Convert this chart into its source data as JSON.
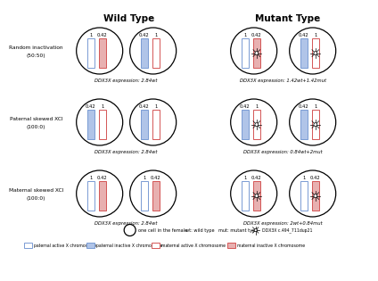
{
  "title_wt": "Wild Type",
  "title_mt": "Mutant Type",
  "row_labels": [
    "Random inactivation\n(50:50)",
    "Paternal skewed XCI\n(100:0)",
    "Maternal skewed XCI\n(100:0)"
  ],
  "wt_expressions": [
    "DDX3X expression: 2.84wt",
    "DDX3X expression: 2.84wt",
    "DDX3X expression: 2.84wt"
  ],
  "mt_expressions": [
    "DDX3X expression: 1.42wt+1.42mut",
    "DDX3X expression: 0.84wt+2mut",
    "DDX3X expression: 2wt+0.84mut"
  ],
  "blue_active": "#7a9bd4",
  "blue_inactive": "#b0c4e8",
  "red_active": "#d45555",
  "red_inactive": "#e8b0b0",
  "legend_circle_text": "one cell in the female",
  "legend_wt_text": "wt: wild type",
  "legend_mut_text": "mut: mutant type",
  "legend_ddx_text": "DDX3X c.494_711dup21",
  "legend_items": [
    "paternal active X chromosome",
    "paternal inactive X chromosome",
    "maternal active X chromosome",
    "maternal inactive X chromosome"
  ],
  "wt_row0": {
    "cell1": {
      "bars": [
        {
          "ox": -0.38,
          "fc": "blue_active",
          "ec": "blue_active",
          "label": "1",
          "filled": false
        },
        {
          "ox": 0.12,
          "fc": "red_inactive",
          "ec": "red_active",
          "label": "0.42",
          "filled": true
        }
      ]
    },
    "cell2": {
      "bars": [
        {
          "ox": -0.38,
          "fc": "blue_inactive",
          "ec": "blue_active",
          "label": "0.42",
          "filled": true
        },
        {
          "ox": 0.12,
          "fc": "red_active",
          "ec": "red_active",
          "label": "1",
          "filled": false
        }
      ]
    }
  },
  "wt_row1": {
    "cell1": {
      "bars": [
        {
          "ox": -0.38,
          "fc": "blue_inactive",
          "ec": "blue_active",
          "label": "0.42",
          "filled": true
        },
        {
          "ox": 0.12,
          "fc": "red_active",
          "ec": "red_active",
          "label": "1",
          "filled": false
        }
      ]
    },
    "cell2": {
      "bars": [
        {
          "ox": -0.38,
          "fc": "blue_inactive",
          "ec": "blue_active",
          "label": "0.42",
          "filled": true
        },
        {
          "ox": 0.12,
          "fc": "red_active",
          "ec": "red_active",
          "label": "1",
          "filled": false
        }
      ]
    }
  },
  "wt_row2": {
    "cell1": {
      "bars": [
        {
          "ox": -0.38,
          "fc": "blue_active",
          "ec": "blue_active",
          "label": "1",
          "filled": false
        },
        {
          "ox": 0.12,
          "fc": "red_inactive",
          "ec": "red_active",
          "label": "0.42",
          "filled": true
        }
      ]
    },
    "cell2": {
      "bars": [
        {
          "ox": -0.38,
          "fc": "blue_active",
          "ec": "blue_active",
          "label": "1",
          "filled": false
        },
        {
          "ox": 0.12,
          "fc": "red_inactive",
          "ec": "red_active",
          "label": "0.42",
          "filled": true
        }
      ]
    }
  },
  "mt_row0": {
    "cell1": {
      "bars": [
        {
          "ox": -0.38,
          "fc": "blue_active",
          "ec": "blue_active",
          "label": "1",
          "filled": false,
          "mut": false
        },
        {
          "ox": 0.12,
          "fc": "red_inactive",
          "ec": "red_active",
          "label": "0.42",
          "filled": true,
          "mut": true
        }
      ]
    },
    "cell2": {
      "bars": [
        {
          "ox": -0.38,
          "fc": "blue_inactive",
          "ec": "blue_active",
          "label": "0.42",
          "filled": true,
          "mut": false
        },
        {
          "ox": 0.12,
          "fc": "red_active",
          "ec": "red_active",
          "label": "1",
          "filled": false,
          "mut": true
        }
      ]
    }
  },
  "mt_row1": {
    "cell1": {
      "bars": [
        {
          "ox": -0.38,
          "fc": "blue_inactive",
          "ec": "blue_active",
          "label": "0.42",
          "filled": true,
          "mut": false
        },
        {
          "ox": 0.12,
          "fc": "red_active",
          "ec": "red_active",
          "label": "1",
          "filled": false,
          "mut": true
        }
      ]
    },
    "cell2": {
      "bars": [
        {
          "ox": -0.38,
          "fc": "blue_inactive",
          "ec": "blue_active",
          "label": "0.42",
          "filled": true,
          "mut": false
        },
        {
          "ox": 0.12,
          "fc": "red_active",
          "ec": "red_active",
          "label": "1",
          "filled": false,
          "mut": true
        }
      ]
    }
  },
  "mt_row2": {
    "cell1": {
      "bars": [
        {
          "ox": -0.38,
          "fc": "blue_active",
          "ec": "blue_active",
          "label": "1",
          "filled": false,
          "mut": false
        },
        {
          "ox": 0.12,
          "fc": "red_inactive",
          "ec": "red_active",
          "label": "0.42",
          "filled": true,
          "mut": true
        }
      ]
    },
    "cell2": {
      "bars": [
        {
          "ox": -0.38,
          "fc": "blue_active",
          "ec": "blue_active",
          "label": "1",
          "filled": false,
          "mut": false
        },
        {
          "ox": 0.12,
          "fc": "red_inactive",
          "ec": "red_active",
          "label": "0.42",
          "filled": true,
          "mut": true
        }
      ]
    }
  }
}
